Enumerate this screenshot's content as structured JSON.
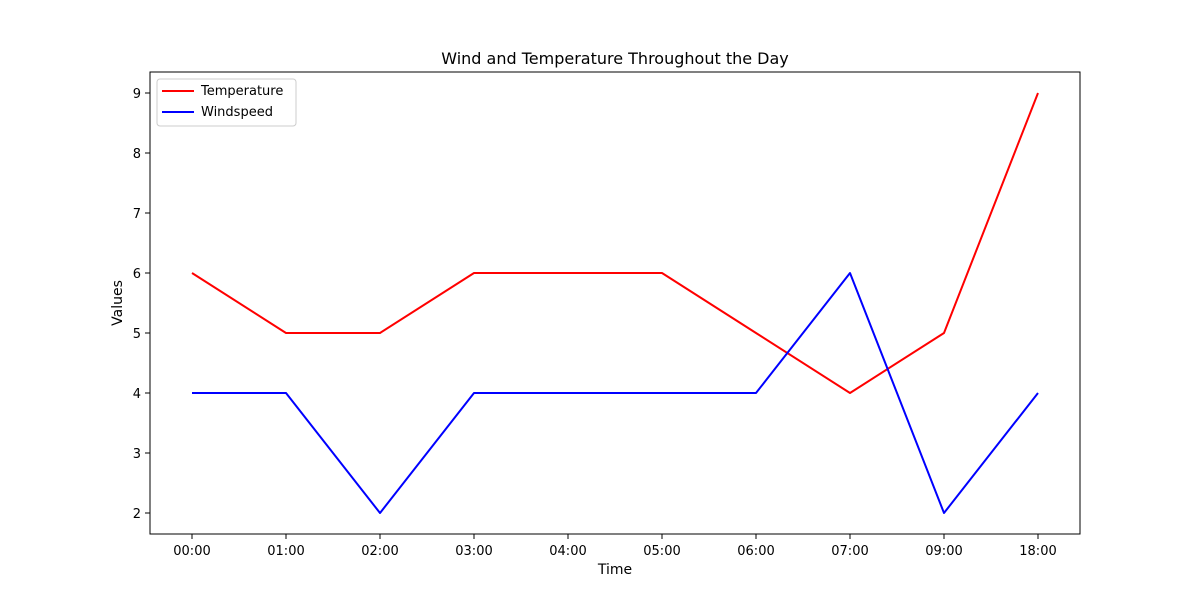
{
  "chart_data": {
    "type": "line",
    "title": "Wind and Temperature Throughout the Day",
    "xlabel": "Time",
    "ylabel": "Values",
    "categories": [
      "00:00",
      "01:00",
      "02:00",
      "03:00",
      "04:00",
      "05:00",
      "06:00",
      "07:00",
      "09:00",
      "18:00"
    ],
    "series": [
      {
        "name": "Temperature",
        "color": "#ff0000",
        "values": [
          6,
          5,
          5,
          6,
          6,
          6,
          5,
          4,
          5,
          9
        ]
      },
      {
        "name": "Windspeed",
        "color": "#0000ff",
        "values": [
          4,
          4,
          2,
          4,
          4,
          4,
          4,
          6,
          2,
          4
        ]
      }
    ],
    "ylim": [
      1.65,
      9.35
    ],
    "yticks": [
      2,
      3,
      4,
      5,
      6,
      7,
      8,
      9
    ],
    "grid": false,
    "legend_position": "top-left"
  }
}
